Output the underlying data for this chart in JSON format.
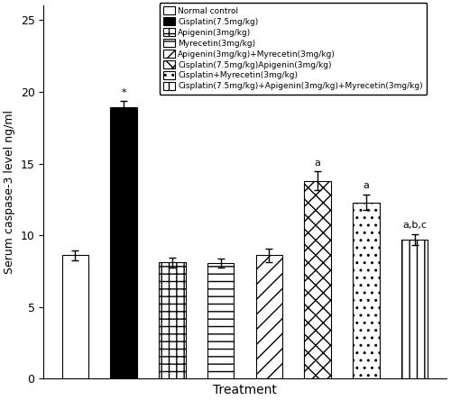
{
  "values": [
    8.6,
    18.9,
    8.1,
    8.05,
    8.6,
    13.8,
    12.3,
    9.7
  ],
  "errors": [
    0.35,
    0.45,
    0.35,
    0.3,
    0.45,
    0.65,
    0.55,
    0.4
  ],
  "annotations": [
    "",
    "*",
    "",
    "",
    "",
    "a",
    "a",
    "a,b,c"
  ],
  "facecolors": [
    "white",
    "black",
    "white",
    "white",
    "white",
    "white",
    "white",
    "white"
  ],
  "legend_labels": [
    "Normal control",
    "Cisplatin(7.5mg/kg)",
    "Apigenin(3mg/kg)",
    "Myrecetin(3mg/kg)",
    "Apigenin(3mg/kg)+Myrecetin(3mg/kg)",
    "Cisplatin(7.5mg/kg)Apigenin(3mg/kg)",
    "Cisplatin+Myrecetin(3mg/kg)",
    "Cisplatin(7.5mg/kg)+Apigenin(3mg/kg)+Myrecetin(3mg/kg)"
  ],
  "ylabel": "Serum caspase-3 level ng/ml",
  "xlabel": "Treatment",
  "ylim": [
    0,
    26
  ],
  "yticks": [
    0,
    5,
    10,
    15,
    20,
    25
  ],
  "figsize": [
    5.0,
    4.44
  ],
  "dpi": 100,
  "bar_width": 0.55
}
